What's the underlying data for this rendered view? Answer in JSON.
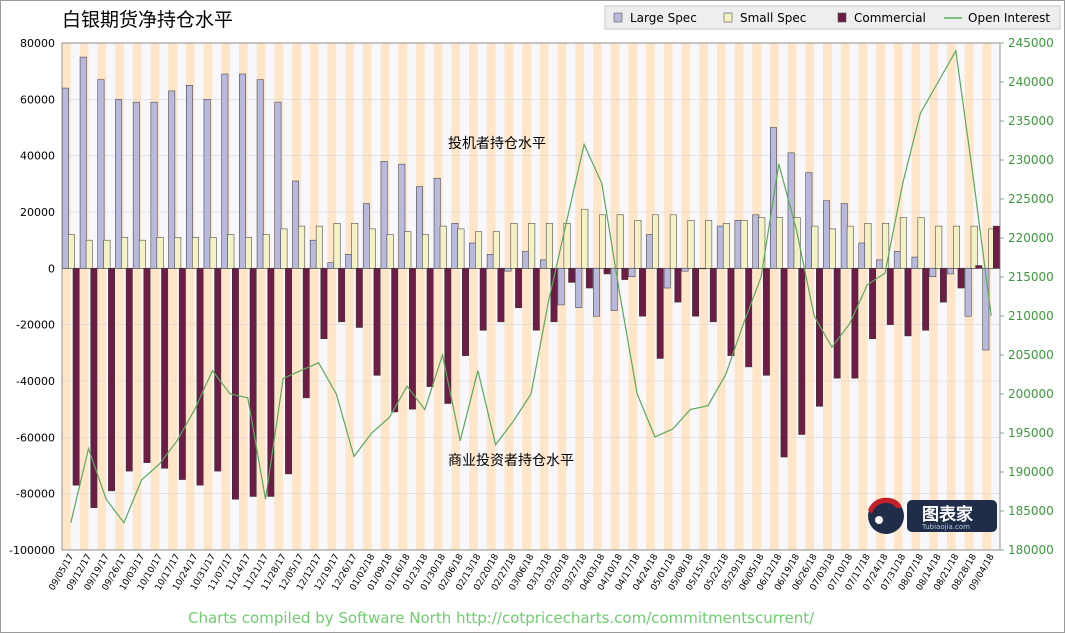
{
  "chart_data": {
    "type": "bar",
    "title": "白银期货净持仓水平",
    "annotations": [
      "投机者持仓水平",
      "商业投资者持仓水平"
    ],
    "footer": "Charts compiled by Software North  http://cotpricecharts.com/commitmentscurrent/",
    "logo": {
      "text": "图表家",
      "subtext": "Tubiaojia.com"
    },
    "legend_position": "top-right",
    "grid": true,
    "colors": {
      "large_spec": "#b9b9dd",
      "small_spec": "#f4f1c4",
      "commercial": "#6d1c45",
      "open_interest": "#5aa95a",
      "band_a": "#ffe6c9",
      "band_b": "#f7f7fc"
    },
    "y_left": {
      "lim": [
        -100000,
        80000
      ],
      "ticks": [
        "80000",
        "60000",
        "40000",
        "20000",
        "0",
        "-20000",
        "-40000",
        "-60000",
        "-80000",
        "-100000"
      ]
    },
    "y_right": {
      "lim": [
        180000,
        245000
      ],
      "ticks": [
        "245000",
        "240000",
        "235000",
        "230000",
        "225000",
        "220000",
        "215000",
        "210000",
        "205000",
        "200000",
        "195000",
        "190000",
        "185000",
        "180000"
      ]
    },
    "categories": [
      "09/05/17",
      "09/12/17",
      "09/19/17",
      "09/26/17",
      "10/03/17",
      "10/10/17",
      "10/17/17",
      "10/24/17",
      "10/31/17",
      "11/07/17",
      "11/14/17",
      "11/21/17",
      "11/28/17",
      "12/05/17",
      "12/12/17",
      "12/19/17",
      "12/26/17",
      "01/02/18",
      "01/09/18",
      "01/16/18",
      "01/23/18",
      "01/30/18",
      "02/06/18",
      "02/13/18",
      "02/20/18",
      "02/27/18",
      "03/06/18",
      "03/13/18",
      "03/20/18",
      "03/27/18",
      "04/03/18",
      "04/10/18",
      "04/17/18",
      "04/24/18",
      "05/01/18",
      "05/08/18",
      "05/15/18",
      "05/22/18",
      "05/29/18",
      "06/05/18",
      "06/12/18",
      "06/19/18",
      "06/26/18",
      "07/03/18",
      "07/10/18",
      "07/17/18",
      "07/24/18",
      "07/31/18",
      "08/07/18",
      "08/14/18",
      "08/21/18",
      "08/28/18",
      "09/04/18"
    ],
    "series": [
      {
        "name": "Large Spec",
        "axis": "left",
        "values": [
          64000,
          75000,
          67000,
          60000,
          59000,
          59000,
          63000,
          65000,
          60000,
          69000,
          69000,
          67000,
          59000,
          31000,
          10000,
          2000,
          5000,
          23000,
          38000,
          37000,
          29000,
          32000,
          16000,
          9000,
          5000,
          -1000,
          6000,
          3000,
          -13000,
          -14000,
          -17000,
          -15000,
          -3000,
          12000,
          -7000,
          -1000,
          0,
          15000,
          17000,
          19000,
          50000,
          41000,
          34000,
          24000,
          23000,
          9000,
          3000,
          6000,
          4000,
          -3000,
          -2000,
          -17000,
          -29000
        ]
      },
      {
        "name": "Small Spec",
        "axis": "left",
        "values": [
          12000,
          10000,
          10000,
          11000,
          10000,
          11000,
          11000,
          11000,
          11000,
          12000,
          11000,
          12000,
          14000,
          15000,
          15000,
          16000,
          16000,
          14000,
          12000,
          13000,
          12000,
          15000,
          14000,
          13000,
          13000,
          16000,
          16000,
          16000,
          16000,
          21000,
          19000,
          19000,
          17000,
          19000,
          19000,
          17000,
          17000,
          16000,
          17000,
          18000,
          18000,
          18000,
          15000,
          14000,
          15000,
          16000,
          16000,
          18000,
          18000,
          15000,
          15000,
          15000,
          14000
        ]
      },
      {
        "name": "Commercial",
        "axis": "left",
        "values": [
          -77000,
          -85000,
          -79000,
          -72000,
          -69000,
          -71000,
          -75000,
          -77000,
          -72000,
          -82000,
          -81000,
          -81000,
          -73000,
          -46000,
          -25000,
          -19000,
          -21000,
          -38000,
          -51000,
          -50000,
          -42000,
          -48000,
          -31000,
          -22000,
          -19000,
          -14000,
          -22000,
          -19000,
          -5000,
          -7000,
          -2000,
          -4000,
          -17000,
          -32000,
          -12000,
          -17000,
          -19000,
          -31000,
          -35000,
          -38000,
          -67000,
          -59000,
          -49000,
          -39000,
          -39000,
          -25000,
          -20000,
          -24000,
          -22000,
          -12000,
          -7000,
          1000,
          15000
        ]
      },
      {
        "name": "Open Interest",
        "axis": "right",
        "type": "line",
        "values": [
          183500,
          193000,
          186500,
          183500,
          189000,
          191000,
          194000,
          198000,
          203000,
          200000,
          199500,
          186500,
          202000,
          203000,
          204000,
          200000,
          192000,
          195000,
          197000,
          201000,
          198000,
          205000,
          194000,
          203000,
          193500,
          196500,
          200000,
          212000,
          222000,
          232000,
          227000,
          213000,
          200000,
          194500,
          195500,
          198000,
          198500,
          202500,
          209000,
          215000,
          229500,
          221000,
          210000,
          206000,
          209000,
          214000,
          215500,
          227000,
          236000,
          240000,
          244000,
          227500,
          210000
        ]
      }
    ]
  }
}
